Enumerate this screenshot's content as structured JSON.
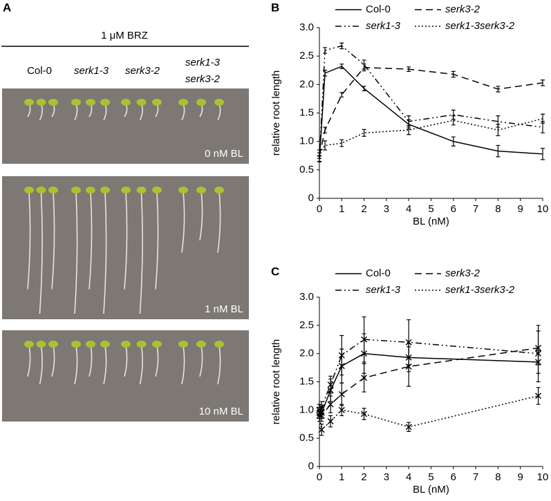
{
  "panel_a": {
    "label": "A",
    "treatment": "1 μM BRZ",
    "genotypes": [
      "Col-0",
      "serk1-3",
      "serk3-2",
      [
        "serk1-3",
        "serk3-2"
      ]
    ],
    "photos": [
      "0 nM BL",
      "1 nM BL",
      "10 nM BL"
    ]
  },
  "chart_data": [
    {
      "type": "line",
      "label": "B",
      "y_label": "relative root length",
      "x_label": "BL (nM)",
      "xlim": [
        0,
        10
      ],
      "xticks": [
        0,
        1,
        2,
        3,
        4,
        5,
        6,
        7,
        8,
        9,
        10
      ],
      "ylim": [
        0,
        3
      ],
      "yticks": [
        0,
        0.5,
        {
          "value": 1,
          "label": "1.0"
        },
        1.5,
        {
          "value": 2,
          "label": "2.0"
        },
        2.5,
        {
          "value": 3,
          "label": "3.0"
        }
      ],
      "x": [
        0,
        0.25,
        1,
        2,
        4,
        6,
        8,
        10
      ],
      "series": [
        {
          "name": "Col-0",
          "color": "#000000",
          "linestyle": "solid",
          "values": [
            0.69,
            2.2,
            2.32,
            1.93,
            1.3,
            1.0,
            0.83,
            0.78
          ],
          "errors": [
            0.05,
            0.05,
            0.04,
            0.04,
            0.08,
            0.08,
            0.1,
            0.1
          ]
        },
        {
          "name": "serk3-2",
          "color": "#000000",
          "linestyle": "dashed",
          "values": [
            0.75,
            1.2,
            1.82,
            2.3,
            2.27,
            2.18,
            1.92,
            2.03
          ],
          "errors": [
            0.05,
            0.05,
            0.04,
            0.06,
            0.04,
            0.05,
            0.05,
            0.05
          ]
        },
        {
          "name": "serk1-3",
          "color": "#000000",
          "linestyle": "dashdot",
          "values": [
            0.7,
            2.6,
            2.68,
            2.35,
            1.35,
            1.47,
            1.35,
            1.25
          ],
          "errors": [
            0.05,
            0.05,
            0.05,
            0.08,
            0.1,
            0.08,
            0.1,
            0.1
          ]
        },
        {
          "name": "serk1-3serk3-2",
          "color": "#000000",
          "linestyle": "dotted",
          "values": [
            0.8,
            0.93,
            0.97,
            1.15,
            1.2,
            1.37,
            1.2,
            1.4
          ],
          "errors": [
            0.05,
            0.08,
            0.06,
            0.06,
            0.08,
            0.08,
            0.1,
            0.08
          ]
        }
      ]
    },
    {
      "type": "line",
      "label": "C",
      "y_label": "relative root length",
      "x_label": "BL (nM)",
      "marker": "x",
      "xlim": [
        0,
        10
      ],
      "xticks": [
        0,
        1,
        2,
        3,
        4,
        5,
        6,
        7,
        8,
        9,
        10
      ],
      "ylim": [
        0,
        3
      ],
      "yticks": [
        0,
        0.5,
        {
          "value": 1,
          "label": "1.0"
        },
        1.5,
        {
          "value": 2,
          "label": "2.0"
        },
        2.5,
        {
          "value": 3,
          "label": "3.0"
        }
      ],
      "x": [
        0,
        0.1,
        0.5,
        1,
        2,
        4,
        9.8
      ],
      "series": [
        {
          "name": "Col-0",
          "color": "#000000",
          "linestyle": "solid",
          "values": [
            1.0,
            0.95,
            1.35,
            1.78,
            2.0,
            1.93,
            1.85
          ],
          "errors": [
            0.1,
            0.1,
            0.2,
            0.3,
            0.35,
            0.25,
            0.2
          ]
        },
        {
          "name": "serk3-2",
          "color": "#000000",
          "linestyle": "dashed",
          "values": [
            0.95,
            0.9,
            1.1,
            1.28,
            1.57,
            1.77,
            2.1
          ],
          "errors": [
            0.1,
            0.1,
            0.15,
            0.2,
            0.25,
            0.35,
            0.3
          ]
        },
        {
          "name": "serk1-3",
          "color": "#000000",
          "linestyle": "dashdot",
          "values": [
            1.0,
            1.05,
            1.45,
            1.97,
            2.25,
            2.2,
            2.0
          ],
          "errors": [
            0.1,
            0.1,
            0.15,
            0.35,
            0.4,
            0.4,
            0.5
          ]
        },
        {
          "name": "serk1-3serk3-2",
          "color": "#000000",
          "linestyle": "dotted",
          "values": [
            0.9,
            0.65,
            0.8,
            1.0,
            0.93,
            0.7,
            1.25
          ],
          "errors": [
            0.1,
            0.1,
            0.1,
            0.1,
            0.1,
            0.08,
            0.15
          ]
        }
      ]
    }
  ]
}
